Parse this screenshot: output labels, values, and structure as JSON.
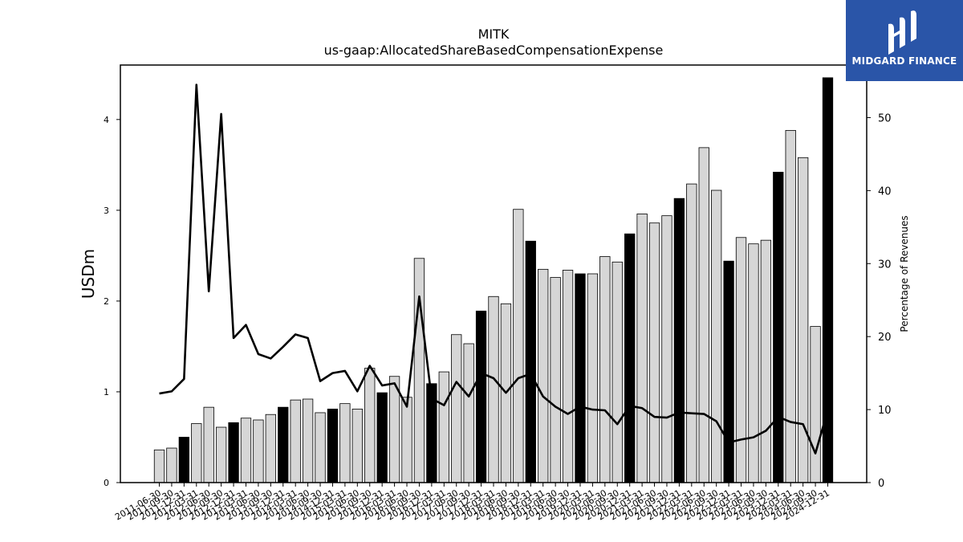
{
  "chart_data": {
    "type": "bar",
    "title": "MITK",
    "subtitle": "us-gaap:AllocatedShareBasedCompensationExpense",
    "ylabel": "USDm",
    "ylabel_right": "Percentage of Revenues",
    "ylim": [
      0,
      4.6
    ],
    "ylim_right": [
      0,
      57.2
    ],
    "yticks": [
      0,
      1,
      2,
      3,
      4
    ],
    "yticks_right": [
      0,
      10,
      20,
      30,
      40,
      50
    ],
    "grid": false,
    "bar_colors": {
      "quarter": "#d6d6d6",
      "fiscal_year_end": "#000000",
      "edge": "#000000"
    },
    "line_color": "#000000",
    "categories": [
      "2011-06-30",
      "2011-09-30",
      "2011-12-31",
      "2012-03-31",
      "2012-06-30",
      "2012-09-30",
      "2012-12-31",
      "2013-03-31",
      "2013-06-30",
      "2013-09-30",
      "2013-12-31",
      "2014-03-31",
      "2014-06-30",
      "2014-09-30",
      "2014-12-31",
      "2015-03-31",
      "2015-06-30",
      "2015-09-30",
      "2015-12-31",
      "2016-03-31",
      "2016-06-30",
      "2016-09-30",
      "2016-12-31",
      "2017-03-31",
      "2017-06-30",
      "2017-09-30",
      "2017-12-31",
      "2018-03-31",
      "2018-06-30",
      "2018-09-30",
      "2018-12-31",
      "2019-03-31",
      "2019-06-30",
      "2019-09-30",
      "2019-12-31",
      "2020-03-31",
      "2020-06-30",
      "2020-09-30",
      "2020-12-31",
      "2021-03-31",
      "2021-06-30",
      "2021-09-30",
      "2021-12-31",
      "2022-03-31",
      "2022-06-30",
      "2022-09-30",
      "2022-12-31",
      "2023-03-31",
      "2023-06-30",
      "2023-09-30",
      "2023-12-31",
      "2024-03-31",
      "2024-06-30",
      "2024-09-30",
      "2024-12-31"
    ],
    "xtick_labels": [
      "2011-06-30",
      "2011-09-30",
      "2011-12-31",
      "2012-03-31",
      "2012-06-30",
      "2012-09-30",
      "2012-12-31",
      "2013-03-31",
      "2013-06-30",
      "2013-09-30",
      "2013-12-31",
      "2014-03-31",
      "2014-06-30",
      "2014-09-30",
      "2014-12-31",
      "2015-03-31",
      "2015-06-30",
      "2015-09-30",
      "2015-12-31",
      "2016-03-31",
      "2016-06-30",
      "2016-09-30",
      "2016-12-31",
      "2017-03-31",
      "2017-06-30",
      "2017-09-30",
      "2017-12-31",
      "2018-03-31",
      "2018-06-30",
      "2018-09-30",
      "2018-12-31",
      "2019-03-31",
      "2019-06-30",
      "2019-09-30",
      "2019-12-31",
      "2020-03-31",
      "2020-06-30",
      "2020-09-30",
      "2020-12-31",
      "2021-03-31",
      "2021-06-30",
      "2021-09-30",
      "2021-12-31",
      "2022-03-31",
      "2022-06-30",
      "2022-09-30",
      "2022-12-31",
      "2023-03-31",
      "2023-06-30",
      "2023-09-30",
      "2023-12-31",
      "2024-03-31",
      "2024-06-30",
      "2024-09-30",
      "2024-12-31"
    ],
    "series": [
      {
        "axis": "left",
        "kind": "bar",
        "values": [
          0.36,
          0.38,
          0.5,
          0.65,
          0.83,
          0.61,
          0.66,
          0.71,
          0.69,
          0.75,
          0.83,
          0.91,
          0.92,
          0.77,
          0.81,
          0.87,
          0.81,
          1.26,
          0.99,
          1.17,
          0.94,
          2.47,
          1.09,
          1.22,
          1.63,
          1.53,
          1.89,
          2.05,
          1.97,
          3.01,
          2.66,
          2.35,
          2.26,
          2.34,
          2.3,
          2.3,
          2.49,
          2.43,
          2.74,
          2.96,
          2.86,
          2.94,
          3.13,
          3.29,
          3.69,
          3.22,
          2.44,
          2.7,
          2.63,
          2.67,
          3.42,
          3.88,
          3.58,
          1.72,
          4.46
        ],
        "fiscal_year_end": [
          false,
          false,
          true,
          false,
          false,
          false,
          true,
          false,
          false,
          false,
          true,
          false,
          false,
          false,
          true,
          false,
          false,
          false,
          true,
          false,
          false,
          false,
          true,
          false,
          false,
          false,
          true,
          false,
          false,
          false,
          true,
          false,
          false,
          false,
          true,
          false,
          false,
          false,
          true,
          false,
          false,
          false,
          true,
          false,
          false,
          false,
          true,
          false,
          false,
          false,
          true,
          false,
          false,
          false,
          true
        ]
      },
      {
        "axis": "right",
        "kind": "line",
        "values": [
          12.2,
          12.5,
          14.2,
          54.5,
          26.2,
          50.5,
          19.8,
          21.6,
          17.6,
          17.0,
          18.6,
          20.3,
          19.8,
          13.9,
          15.0,
          15.3,
          12.5,
          16.0,
          13.3,
          13.6,
          10.4,
          25.5,
          11.5,
          10.6,
          13.8,
          11.8,
          15.0,
          14.3,
          12.3,
          14.3,
          14.9,
          11.8,
          10.4,
          9.4,
          10.4,
          10.0,
          9.9,
          8.0,
          10.5,
          10.2,
          9.0,
          8.9,
          9.6,
          9.5,
          9.4,
          8.4,
          5.5,
          5.9,
          6.2,
          7.1,
          9.0,
          8.3,
          8.0,
          4.0,
          9.9
        ]
      }
    ]
  },
  "logo": {
    "brand_text": "MIDGARD FINANCE"
  }
}
